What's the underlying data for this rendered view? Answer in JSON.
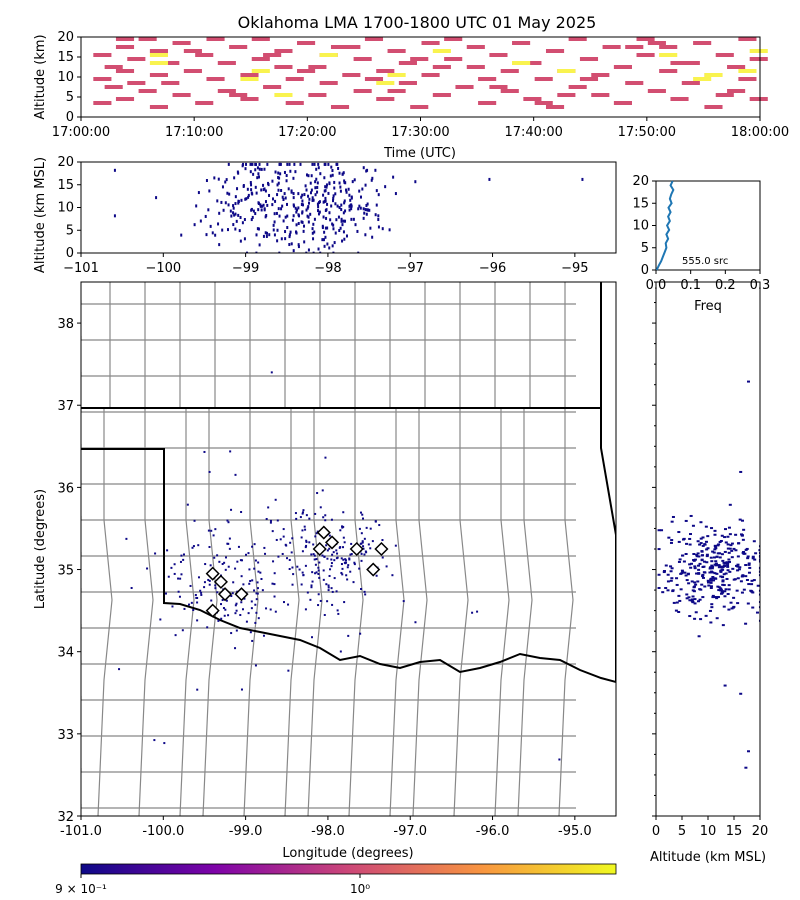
{
  "title": "Oklahoma LMA 1700-1800 UTC 01 May 2025",
  "colors": {
    "hot": "#d24e71",
    "warm": "#f9f34f",
    "cold": "#0d0887"
  },
  "chart_data": [
    {
      "id": "time-height",
      "type": "heatmap",
      "ylabel": "Altitude (km)",
      "xlabel": "Time (UTC)",
      "xticks": [
        "17:00:00",
        "17:10:00",
        "17:20:00",
        "17:30:00",
        "17:40:00",
        "17:50:00",
        "18:00:00"
      ],
      "yticks": [
        "0",
        "5",
        "10",
        "15",
        "20"
      ],
      "xlim_minutes": [
        0,
        60
      ],
      "ylim": [
        0,
        20
      ],
      "bins": {
        "hot": [
          [
            1,
            9
          ],
          [
            1,
            15
          ],
          [
            2,
            7
          ],
          [
            2,
            12
          ],
          [
            3,
            4
          ],
          [
            3,
            11
          ],
          [
            3,
            17
          ],
          [
            4,
            14
          ],
          [
            5,
            6
          ],
          [
            5,
            19
          ],
          [
            6,
            2
          ],
          [
            6,
            10
          ],
          [
            6,
            16
          ],
          [
            7,
            8
          ],
          [
            7,
            13
          ],
          [
            8,
            5
          ],
          [
            8,
            18
          ],
          [
            9,
            11
          ],
          [
            10,
            3
          ],
          [
            10,
            15
          ],
          [
            11,
            9
          ],
          [
            11,
            19
          ],
          [
            12,
            6
          ],
          [
            12,
            13
          ],
          [
            13,
            17
          ],
          [
            14,
            4
          ],
          [
            14,
            10
          ],
          [
            15,
            14
          ],
          [
            15,
            19
          ],
          [
            16,
            7
          ],
          [
            17,
            12
          ],
          [
            17,
            16
          ],
          [
            18,
            3
          ],
          [
            18,
            9
          ],
          [
            19,
            18
          ],
          [
            20,
            5
          ],
          [
            20,
            12
          ],
          [
            21,
            15
          ],
          [
            21,
            8
          ],
          [
            22,
            2
          ],
          [
            22,
            17
          ],
          [
            23,
            10
          ],
          [
            24,
            6
          ],
          [
            24,
            14
          ],
          [
            25,
            19
          ],
          [
            26,
            4
          ],
          [
            26,
            11
          ],
          [
            27,
            16
          ],
          [
            28,
            8
          ],
          [
            28,
            13
          ],
          [
            29,
            2
          ],
          [
            30,
            18
          ],
          [
            30,
            10
          ],
          [
            31,
            5
          ],
          [
            32,
            14
          ],
          [
            32,
            19
          ],
          [
            33,
            7
          ],
          [
            34,
            12
          ],
          [
            34,
            17
          ],
          [
            35,
            3
          ],
          [
            35,
            9
          ],
          [
            36,
            15
          ],
          [
            37,
            11
          ],
          [
            37,
            6
          ],
          [
            38,
            18
          ],
          [
            39,
            4
          ],
          [
            39,
            13
          ],
          [
            40,
            9
          ],
          [
            41,
            16
          ],
          [
            41,
            2
          ],
          [
            42,
            11
          ],
          [
            43,
            7
          ],
          [
            43,
            19
          ],
          [
            44,
            14
          ],
          [
            45,
            5
          ],
          [
            45,
            10
          ],
          [
            46,
            17
          ],
          [
            47,
            3
          ],
          [
            47,
            12
          ],
          [
            48,
            8
          ],
          [
            49,
            15
          ],
          [
            49,
            19
          ],
          [
            50,
            6
          ],
          [
            51,
            11
          ],
          [
            51,
            17
          ],
          [
            52,
            4
          ],
          [
            53,
            13
          ],
          [
            53,
            8
          ],
          [
            54,
            18
          ],
          [
            55,
            2
          ],
          [
            55,
            10
          ],
          [
            56,
            15
          ],
          [
            57,
            6
          ],
          [
            57,
            12
          ],
          [
            58,
            19
          ],
          [
            58,
            9
          ],
          [
            59,
            4
          ],
          [
            59,
            14
          ],
          [
            1,
            3
          ],
          [
            4,
            8
          ],
          [
            9,
            16
          ],
          [
            13,
            5
          ],
          [
            19,
            11
          ],
          [
            23,
            17
          ],
          [
            27,
            6
          ],
          [
            31,
            12
          ],
          [
            36,
            7
          ],
          [
            40,
            3
          ],
          [
            44,
            9
          ],
          [
            48,
            17
          ],
          [
            52,
            13
          ],
          [
            56,
            5
          ],
          [
            3,
            19
          ],
          [
            16,
            15
          ],
          [
            25,
            9
          ],
          [
            29,
            14
          ],
          [
            42,
            5
          ],
          [
            50,
            18
          ]
        ],
        "warm": [
          [
            6,
            13
          ],
          [
            6,
            15
          ],
          [
            14,
            9
          ],
          [
            15,
            11
          ],
          [
            21,
            15
          ],
          [
            26,
            8
          ],
          [
            27,
            10
          ],
          [
            31,
            16
          ],
          [
            38,
            13
          ],
          [
            42,
            11
          ],
          [
            51,
            15
          ],
          [
            55,
            10
          ],
          [
            58,
            11
          ],
          [
            59,
            16
          ],
          [
            54,
            9
          ],
          [
            17,
            5
          ]
        ]
      }
    },
    {
      "id": "lon-height",
      "type": "scatter",
      "xlabel": "",
      "ylabel": "Altitude (km MSL)",
      "xticks": [
        "−101",
        "−100",
        "−99",
        "−98",
        "−97",
        "−96",
        "−95"
      ],
      "yticks": [
        "0",
        "5",
        "10",
        "15",
        "20"
      ],
      "xlim": [
        -101,
        -94.5
      ],
      "ylim": [
        0,
        20
      ]
    },
    {
      "id": "height-histogram",
      "type": "line",
      "xlabel": "Freq",
      "ylabel": "",
      "xticks": [
        "0.0",
        "0.1",
        "0.2",
        "0.3"
      ],
      "yticks": [
        "0",
        "5",
        "10",
        "15",
        "20"
      ],
      "xlim": [
        0,
        0.3
      ],
      "ylim": [
        0,
        20
      ],
      "annotation": "555.0 src",
      "x": [
        0.002,
        0.008,
        0.015,
        0.02,
        0.025,
        0.03,
        0.028,
        0.035,
        0.03,
        0.038,
        0.032,
        0.04,
        0.035,
        0.042,
        0.036,
        0.045,
        0.04,
        0.044,
        0.05,
        0.042,
        0.048
      ],
      "y": [
        0,
        1,
        2,
        3,
        4,
        5,
        6,
        7,
        8,
        9,
        10,
        11,
        12,
        13,
        14,
        15,
        16,
        17,
        18,
        19,
        20
      ]
    },
    {
      "id": "plan-view",
      "type": "scatter",
      "xlabel": "Longitude (degrees)",
      "ylabel": "Latitude (degrees)",
      "xticks": [
        "-101.0",
        "-100.0",
        "-99.0",
        "-98.0",
        "-97.0",
        "-96.0",
        "-95.0"
      ],
      "yticks": [
        "32",
        "33",
        "34",
        "35",
        "36",
        "37",
        "38"
      ],
      "xlim": [
        -101,
        -94.5
      ],
      "ylim": [
        32,
        38.5
      ],
      "stations": [
        [
          -98.05,
          35.45
        ],
        [
          -97.95,
          35.33
        ],
        [
          -98.1,
          35.25
        ],
        [
          -97.65,
          35.25
        ],
        [
          -97.35,
          35.25
        ],
        [
          -97.45,
          35.0
        ],
        [
          -99.4,
          34.95
        ],
        [
          -99.3,
          34.85
        ],
        [
          -99.25,
          34.7
        ],
        [
          -99.05,
          34.7
        ],
        [
          -99.4,
          34.5
        ]
      ]
    },
    {
      "id": "height-lat",
      "type": "scatter",
      "xlabel": "Altitude (km MSL)",
      "ylabel": "",
      "xticks": [
        "0",
        "5",
        "10",
        "15",
        "20"
      ],
      "xlim": [
        0,
        20
      ],
      "ylim": [
        32,
        38.5
      ]
    },
    {
      "id": "colorbar",
      "type": "heatmap",
      "tick_labels": [
        "9 × 10⁻¹",
        "10⁰"
      ]
    }
  ]
}
